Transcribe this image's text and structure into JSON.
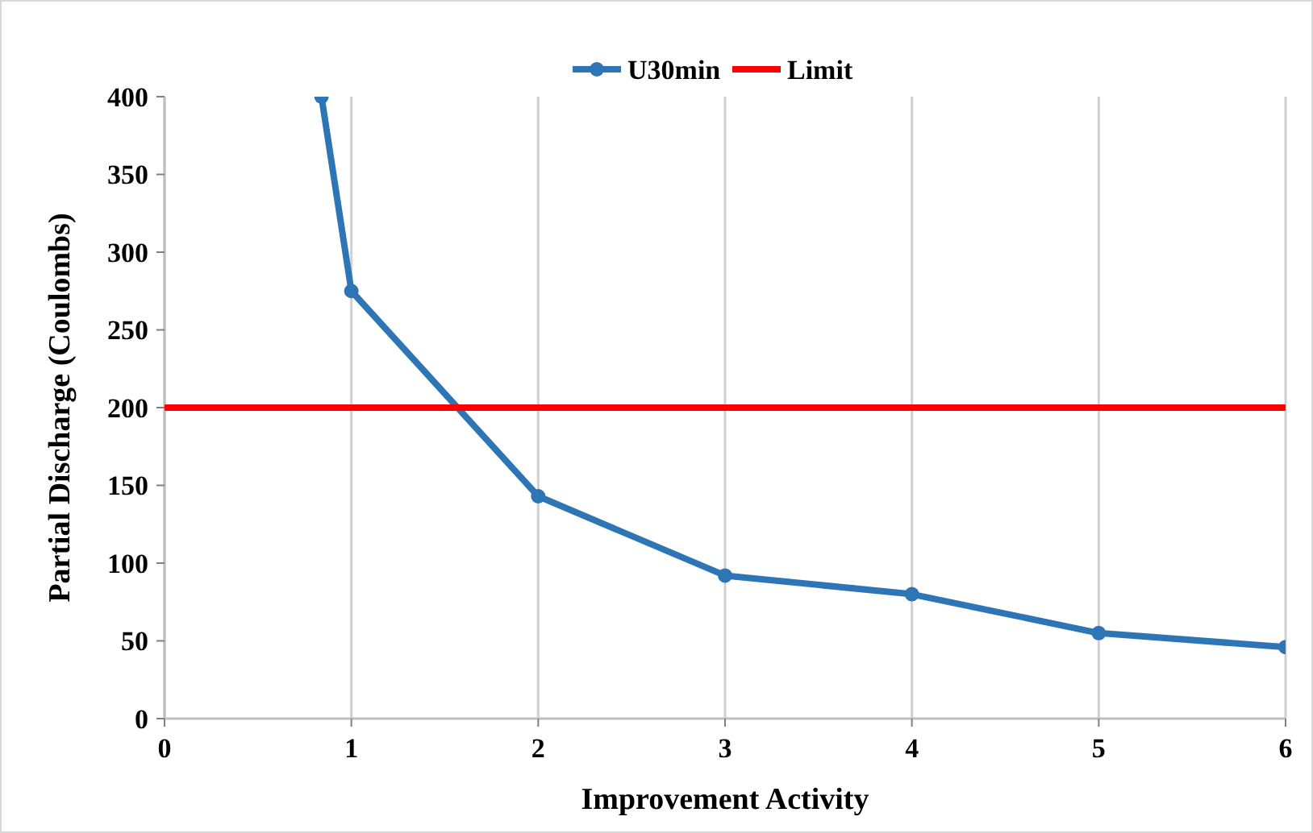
{
  "chart_data": {
    "type": "line",
    "xlabel": "Improvement Activity",
    "ylabel": "Partial Discharge (Coulombs)",
    "xlim": [
      0,
      6
    ],
    "xticks": [
      0,
      1,
      2,
      3,
      4,
      5,
      6
    ],
    "ylim": [
      0,
      400
    ],
    "yticks": [
      0,
      50,
      100,
      150,
      200,
      250,
      300,
      350,
      400
    ],
    "grid": "x",
    "legend": "top",
    "series": [
      {
        "name": "U30min",
        "color": "#2e75b6",
        "marker": "circle",
        "x": [
          0.84,
          1,
          2,
          3,
          4,
          5,
          6
        ],
        "values": [
          400,
          275,
          143,
          92,
          80,
          55,
          46
        ]
      },
      {
        "name": "Limit",
        "color": "#ff0000",
        "marker": "none",
        "x": [
          0,
          6
        ],
        "values": [
          200,
          200
        ]
      }
    ]
  }
}
